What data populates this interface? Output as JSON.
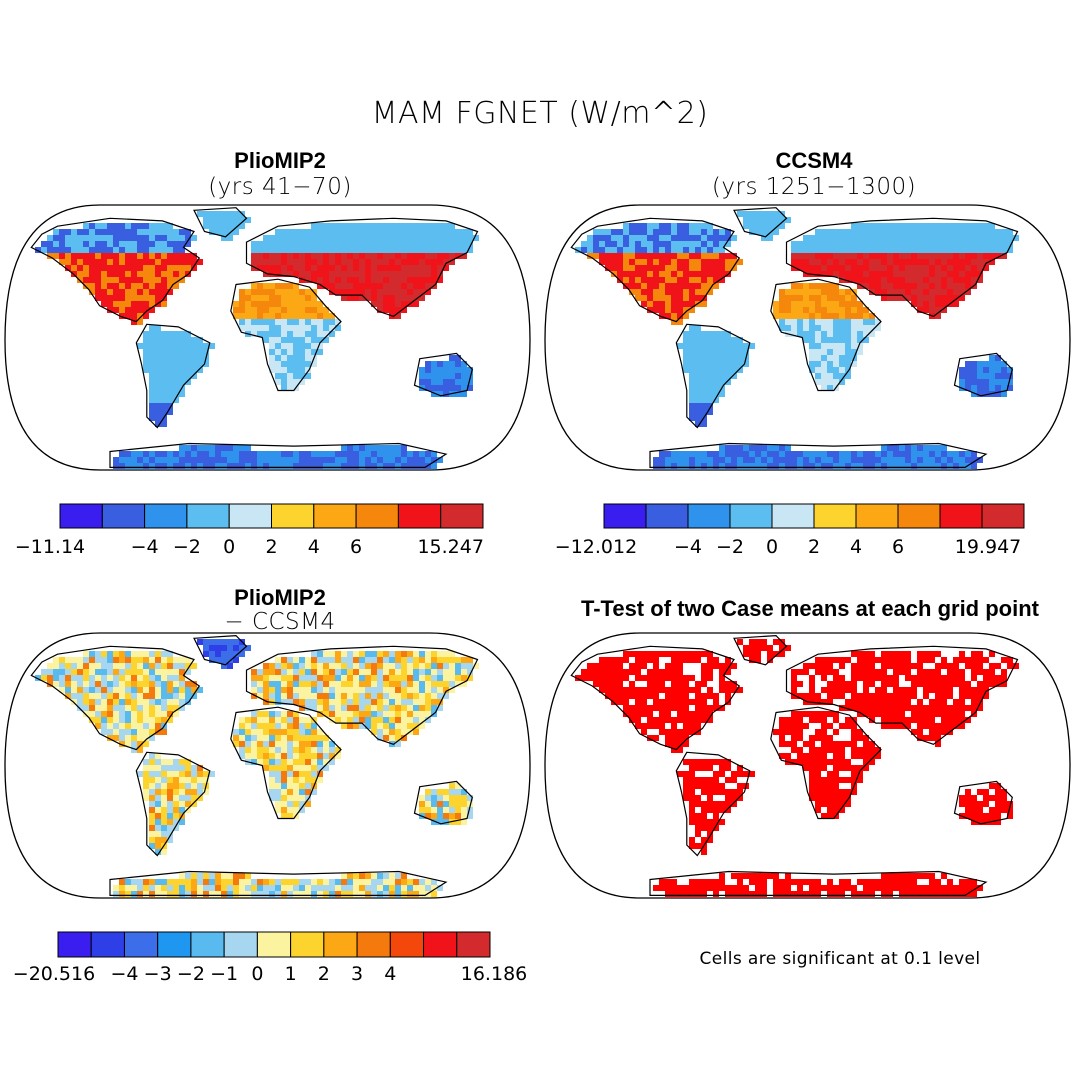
{
  "figure_title": "MAM FGNET (W/m^2)",
  "panels": [
    {
      "id": "p1",
      "title": "PlioMIP2",
      "subtitle": "(yrs 41−70)"
    },
    {
      "id": "p2",
      "title": "CCSM4",
      "subtitle": "(yrs 1251−1300)"
    },
    {
      "id": "p3",
      "title": "PlioMIP2",
      "subtitle": "− CCSM4"
    },
    {
      "id": "p4",
      "title": "T-Test of two Case means at each grid point",
      "subtitle": ""
    }
  ],
  "colorbars": [
    {
      "id": "cb1",
      "colors": [
        "#3a1ef0",
        "#3a5ee0",
        "#2f93ee",
        "#5bbdf0",
        "#c9e6f5",
        "#fdd32e",
        "#fca714",
        "#f4870c",
        "#f0141a",
        "#d22a2d"
      ],
      "tick_labels": [
        "−11.14",
        "−4",
        "−2",
        "0",
        "2",
        "4",
        "6",
        "15.247"
      ]
    },
    {
      "id": "cb2",
      "colors": [
        "#3a1ef0",
        "#3a5ee0",
        "#2f93ee",
        "#5bbdf0",
        "#c9e6f5",
        "#fdd32e",
        "#fca714",
        "#f4870c",
        "#f0141a",
        "#d22a2d"
      ],
      "tick_labels": [
        "−12.012",
        "−4",
        "−2",
        "0",
        "2",
        "4",
        "6",
        "19.947"
      ]
    },
    {
      "id": "cb3",
      "colors": [
        "#3a1ef0",
        "#2e3fe8",
        "#3b6ee8",
        "#1f97f0",
        "#59baf0",
        "#a6d6f0",
        "#fbf3a0",
        "#fdd32e",
        "#fca714",
        "#f57a0e",
        "#f4470c",
        "#f0141a",
        "#d22a2d"
      ],
      "tick_labels": [
        "−20.516",
        "−4",
        "−3",
        "−2",
        "−1",
        "0",
        "1",
        "2",
        "3",
        "4",
        "16.186"
      ]
    }
  ],
  "significance_note": "Cells are significant at 0.1 level",
  "palette": {
    "land_cold": "#5bbdf0",
    "land_hot": "#e8231e",
    "significant": "#ff0000",
    "coast": "#000000"
  }
}
